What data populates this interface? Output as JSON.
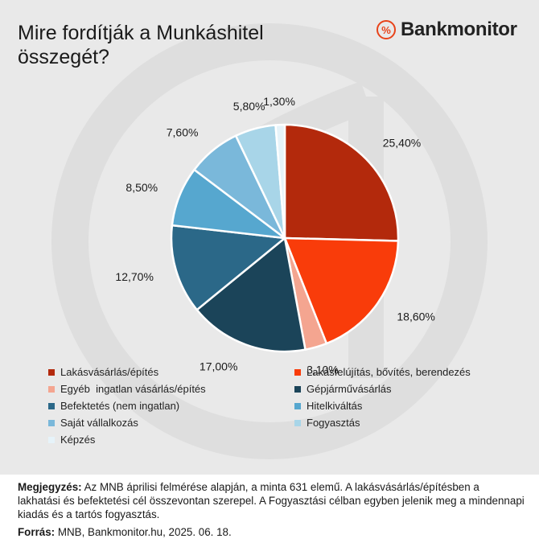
{
  "header": {
    "title": "Mire fordítják a Munkáshitel összegét?",
    "brand_logo_symbol": "%",
    "brand_name": "Bankmonitor",
    "brand_color": "#e8431a"
  },
  "chart_data": {
    "type": "pie",
    "start": "12 o'clock",
    "direction": "clockwise",
    "slices": [
      {
        "label": "Lakásvásárlás/építés",
        "value": 25.4,
        "display": "25,40%",
        "color": "#b3290c"
      },
      {
        "label": "Lakásfelújítás, bővítés, berendezés",
        "value": 18.6,
        "display": "18,60%",
        "color": "#f93c0a"
      },
      {
        "label": "Egyéb  ingatlan vásárlás/építés",
        "value": 3.1,
        "display": "3,10%",
        "color": "#f4a590"
      },
      {
        "label": "Gépjárművásárlás",
        "value": 17.0,
        "display": "17,00%",
        "color": "#1b4459"
      },
      {
        "label": "Befektetés (nem ingatlan)",
        "value": 12.7,
        "display": "12,70%",
        "color": "#2b6888"
      },
      {
        "label": "Hitelkiváltás",
        "value": 8.5,
        "display": "8,50%",
        "color": "#56a7cf"
      },
      {
        "label": "Saját vállalkozás",
        "value": 7.6,
        "display": "7,60%",
        "color": "#7ab8da"
      },
      {
        "label": "Fogyasztás",
        "value": 5.8,
        "display": "5,80%",
        "color": "#a8d5e8"
      },
      {
        "label": "Képzés",
        "value": 1.3,
        "display": "1,30%",
        "color": "#e6f3f9"
      }
    ],
    "legend_position": "bottom"
  },
  "notes": {
    "note_label": "Megjegyzés:",
    "note_text": " Az MNB áprilisi felmérése alapján, a minta 631 elemű. A lakásvásárlás/építésben a lakhatási és befektetési cél összevontan szerepel. A Fogyasztási célban egyben jelenik meg a mindennapi kiadás és a tartós fogyasztás.",
    "source_label": "Forrás:",
    "source_text": " MNB, Bankmonitor.hu, 2025. 06. 18."
  }
}
